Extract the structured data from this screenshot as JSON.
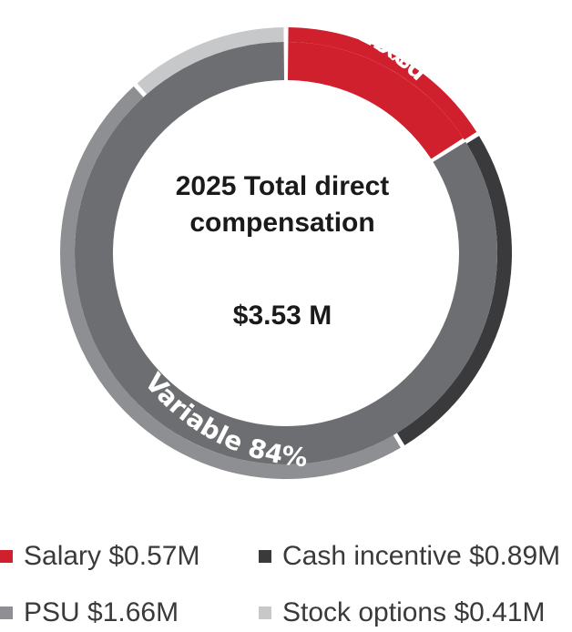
{
  "chart_data": {
    "type": "pie",
    "center": {
      "title_line1": "2025 Total direct",
      "title_line2": "compensation",
      "total": "$3.53 M"
    },
    "inner_ring": {
      "segments": [
        {
          "name": "Fixed",
          "percent": 16,
          "label_line1": "Fixed",
          "label_line2": "16%",
          "color": "#d0202e"
        },
        {
          "name": "Variable",
          "percent": 84,
          "label": "Variable 84%",
          "color": "#6d6e71"
        }
      ]
    },
    "outer_ring": {
      "segments": [
        {
          "name": "Salary",
          "value": 0.57,
          "color": "#d0202e"
        },
        {
          "name": "Cash incentive",
          "value": 0.89,
          "color": "#3a3a3c"
        },
        {
          "name": "PSU",
          "value": 1.66,
          "color": "#8e8f92"
        },
        {
          "name": "Stock options",
          "value": 0.41,
          "color": "#c7c8ca"
        }
      ]
    },
    "legend": [
      {
        "label": "Salary $0.57M",
        "color": "#d0202e"
      },
      {
        "label": "Cash incentive $0.89M",
        "color": "#3a3a3c"
      },
      {
        "label": "PSU $1.66M",
        "color": "#8e8f92"
      },
      {
        "label": "Stock options  $0.41M",
        "color": "#c7c8ca"
      }
    ]
  }
}
